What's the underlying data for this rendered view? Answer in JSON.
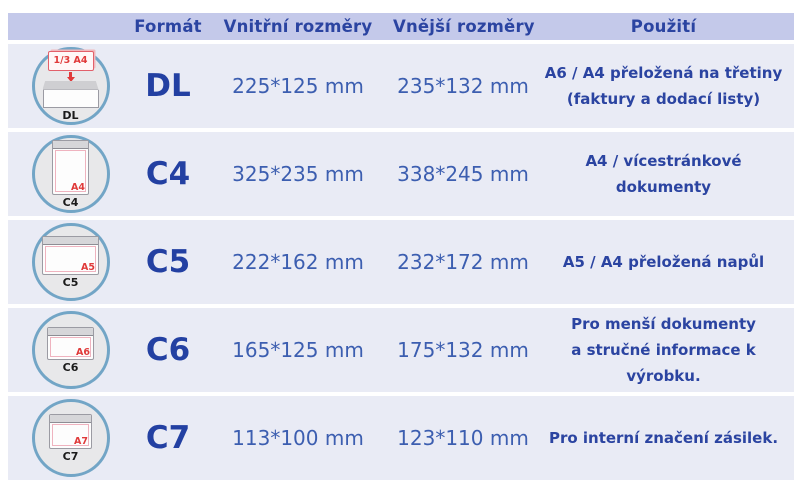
{
  "table": {
    "headers": {
      "format": "Formát",
      "inner": "Vnitřní rozměry",
      "outer": "Vnější rozměry",
      "usage": "Použití"
    },
    "rows": [
      {
        "icon": {
          "label": "DL",
          "paper_label": "1/3 A4"
        },
        "format": "DL",
        "inner": "225*125 mm",
        "outer": "235*132 mm",
        "usage_line1": "A6 / A4 přeložená na třetiny",
        "usage_line2": "(faktury a dodací listy)"
      },
      {
        "icon": {
          "label": "C4",
          "paper_label": "A4"
        },
        "format": "C4",
        "inner": "325*235 mm",
        "outer": "338*245 mm",
        "usage_line1": "A4 / vícestránkové",
        "usage_line2": "dokumenty"
      },
      {
        "icon": {
          "label": "C5",
          "paper_label": "A5"
        },
        "format": "C5",
        "inner": "222*162 mm",
        "outer": "232*172 mm",
        "usage_line1": "A5 / A4 přeložená napůl",
        "usage_line2": ""
      },
      {
        "icon": {
          "label": "C6",
          "paper_label": "A6"
        },
        "format": "C6",
        "inner": "165*125 mm",
        "outer": "175*132 mm",
        "usage_line1": "Pro menší dokumenty",
        "usage_line2": "a stručné informace k výrobku."
      },
      {
        "icon": {
          "label": "C7",
          "paper_label": "A7"
        },
        "format": "C7",
        "inner": "113*100 mm",
        "outer": "123*110 mm",
        "usage_line1": "Pro interní značení zásilek.",
        "usage_line2": ""
      }
    ]
  },
  "colors": {
    "header_bg": "#c4c9ea",
    "row_bg": "#e9ebf5",
    "heading_text": "#2b44a1",
    "format_text": "#2340a2",
    "dimension_text": "#3c5eb0",
    "accent_red": "#e03a3a",
    "circle_border": "#72a5c6",
    "circle_fill": "#e8e8ea"
  }
}
